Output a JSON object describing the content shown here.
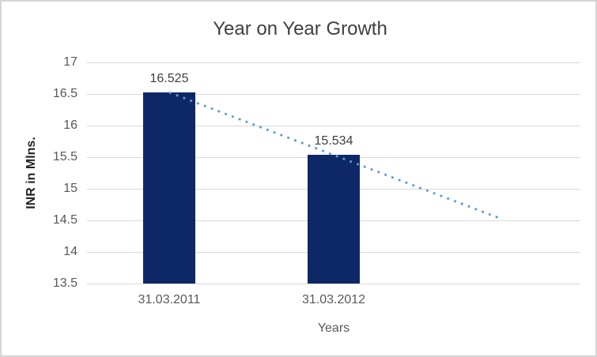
{
  "frame": {
    "background": "#FFFFFF",
    "border_color": "#D5D5D5"
  },
  "chart_data": {
    "type": "bar",
    "title": "Year on Year Growth",
    "xlabel": "Years",
    "ylabel": "INR in Mlns.",
    "categories": [
      "31.03.2011",
      "31.03.2012"
    ],
    "values": [
      16.525,
      15.534
    ],
    "data_labels": [
      "16.525",
      "15.534"
    ],
    "ylim": [
      13.5,
      17
    ],
    "yticks": [
      {
        "label": "17",
        "value": 17
      },
      {
        "label": "16.5",
        "value": 16.5
      },
      {
        "label": "16",
        "value": 16
      },
      {
        "label": "15.5",
        "value": 15.5
      },
      {
        "label": "15",
        "value": 15
      },
      {
        "label": "14.5",
        "value": 14.5
      },
      {
        "label": "14",
        "value": 14
      },
      {
        "label": "13.5",
        "value": 13.5
      }
    ],
    "grid": true,
    "legend": "none",
    "slots": 3,
    "bar_color": "#0E2766",
    "gridline_color": "#D9D9D9",
    "trendline": {
      "type": "linear",
      "style": "dotted",
      "color": "#5B9BD5",
      "start_slot": 0,
      "start_value": 16.525,
      "end_slot": 2,
      "end_value": 14.543
    },
    "colors": {
      "title_text": "#404040",
      "tick_text": "#595959",
      "data_label_text": "#404040",
      "axis_title_text": "#222222"
    }
  }
}
